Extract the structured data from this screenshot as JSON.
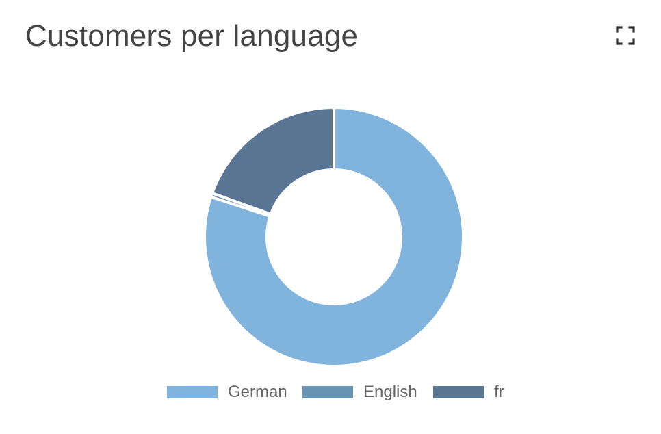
{
  "widget": {
    "title": "Customers per language",
    "fullscreen_icon": "expand-icon"
  },
  "colors": {
    "German": "#81b4dc",
    "English": "#6893b3",
    "fr": "#5a7594",
    "title": "#444444",
    "legend_text": "#666666",
    "icon": "#333333"
  },
  "chart_data": {
    "type": "pie",
    "variant": "doughnut",
    "categories": [
      "German",
      "English",
      "fr"
    ],
    "values": [
      80,
      0.5,
      19.5
    ],
    "title": "Customers per language",
    "legend": {
      "position": "bottom",
      "entries": [
        "German",
        "English",
        "fr"
      ]
    }
  }
}
